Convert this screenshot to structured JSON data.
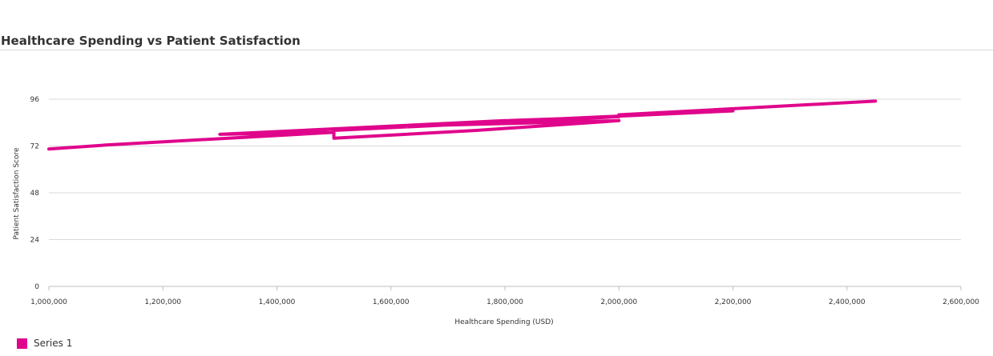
{
  "chart_data": {
    "type": "line",
    "title": "Healthcare Spending vs Patient Satisfaction",
    "xlabel": "Healthcare Spending (USD)",
    "ylabel": "Patient Satisfaction Score",
    "xlim": [
      1000000,
      2600000
    ],
    "ylim": [
      0,
      96
    ],
    "x_ticks": [
      1000000,
      1200000,
      1400000,
      1600000,
      1800000,
      2000000,
      2200000,
      2400000,
      2600000
    ],
    "x_tick_labels": [
      "1,000,000",
      "1,200,000",
      "1,400,000",
      "1,600,000",
      "1,800,000",
      "2,000,000",
      "2,200,000",
      "2,400,000",
      "2,600,000"
    ],
    "y_ticks": [
      0,
      24,
      48,
      72,
      96
    ],
    "y_tick_labels": [
      "0",
      "24",
      "48",
      "72",
      "96"
    ],
    "grid": true,
    "legend_position": "bottom-left",
    "series": [
      {
        "name": "Series 1",
        "color": "#e0068c",
        "points": [
          {
            "x": 1000000,
            "y": 70.5
          },
          {
            "x": 1100000,
            "y": 72.5
          },
          {
            "x": 1500000,
            "y": 79
          },
          {
            "x": 1300000,
            "y": 78
          },
          {
            "x": 1800000,
            "y": 85
          },
          {
            "x": 2000000,
            "y": 87
          },
          {
            "x": 1500000,
            "y": 80
          },
          {
            "x": 1500000,
            "y": 76
          },
          {
            "x": 1750000,
            "y": 80
          },
          {
            "x": 2000000,
            "y": 85
          },
          {
            "x": 1600000,
            "y": 82
          },
          {
            "x": 2200000,
            "y": 90
          },
          {
            "x": 2000000,
            "y": 88
          },
          {
            "x": 2450000,
            "y": 95
          }
        ]
      }
    ]
  }
}
